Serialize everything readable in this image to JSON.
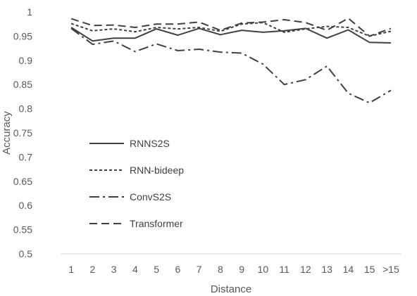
{
  "chart_data": {
    "type": "line",
    "title": "",
    "xlabel": "Distance",
    "ylabel": "Accuracy",
    "categories": [
      "1",
      "2",
      "3",
      "4",
      "5",
      "6",
      "7",
      "8",
      "9",
      "10",
      "11",
      "12",
      "13",
      "14",
      "15",
      ">15"
    ],
    "ylim": [
      0.5,
      1
    ],
    "yticks": [
      "0.5",
      "0.55",
      "0.6",
      "0.65",
      "0.7",
      "0.75",
      "0.8",
      "0.85",
      "0.9",
      "0.95",
      "1"
    ],
    "grid": false,
    "legend_position": "left-middle",
    "series": [
      {
        "name": "RNNS2S",
        "dash": "solid",
        "color": "#404040",
        "values": [
          0.968,
          0.94,
          0.946,
          0.946,
          0.965,
          0.952,
          0.966,
          0.953,
          0.962,
          0.958,
          0.961,
          0.966,
          0.946,
          0.963,
          0.937,
          0.936
        ]
      },
      {
        "name": "RNN-bideep",
        "dash": "short-dash",
        "color": "#404040",
        "values": [
          0.976,
          0.961,
          0.965,
          0.959,
          0.968,
          0.965,
          0.968,
          0.96,
          0.975,
          0.978,
          0.958,
          0.965,
          0.97,
          0.968,
          0.95,
          0.96
        ]
      },
      {
        "name": "ConvS2S",
        "dash": "dash-dot",
        "color": "#404040",
        "values": [
          0.966,
          0.933,
          0.94,
          0.918,
          0.934,
          0.92,
          0.923,
          0.917,
          0.915,
          0.892,
          0.85,
          0.86,
          0.888,
          0.832,
          0.812,
          0.838
        ]
      },
      {
        "name": "Transformer",
        "dash": "long-dash",
        "color": "#404040",
        "values": [
          0.986,
          0.972,
          0.973,
          0.968,
          0.975,
          0.975,
          0.979,
          0.962,
          0.977,
          0.979,
          0.984,
          0.978,
          0.962,
          0.987,
          0.95,
          0.966
        ]
      }
    ]
  }
}
